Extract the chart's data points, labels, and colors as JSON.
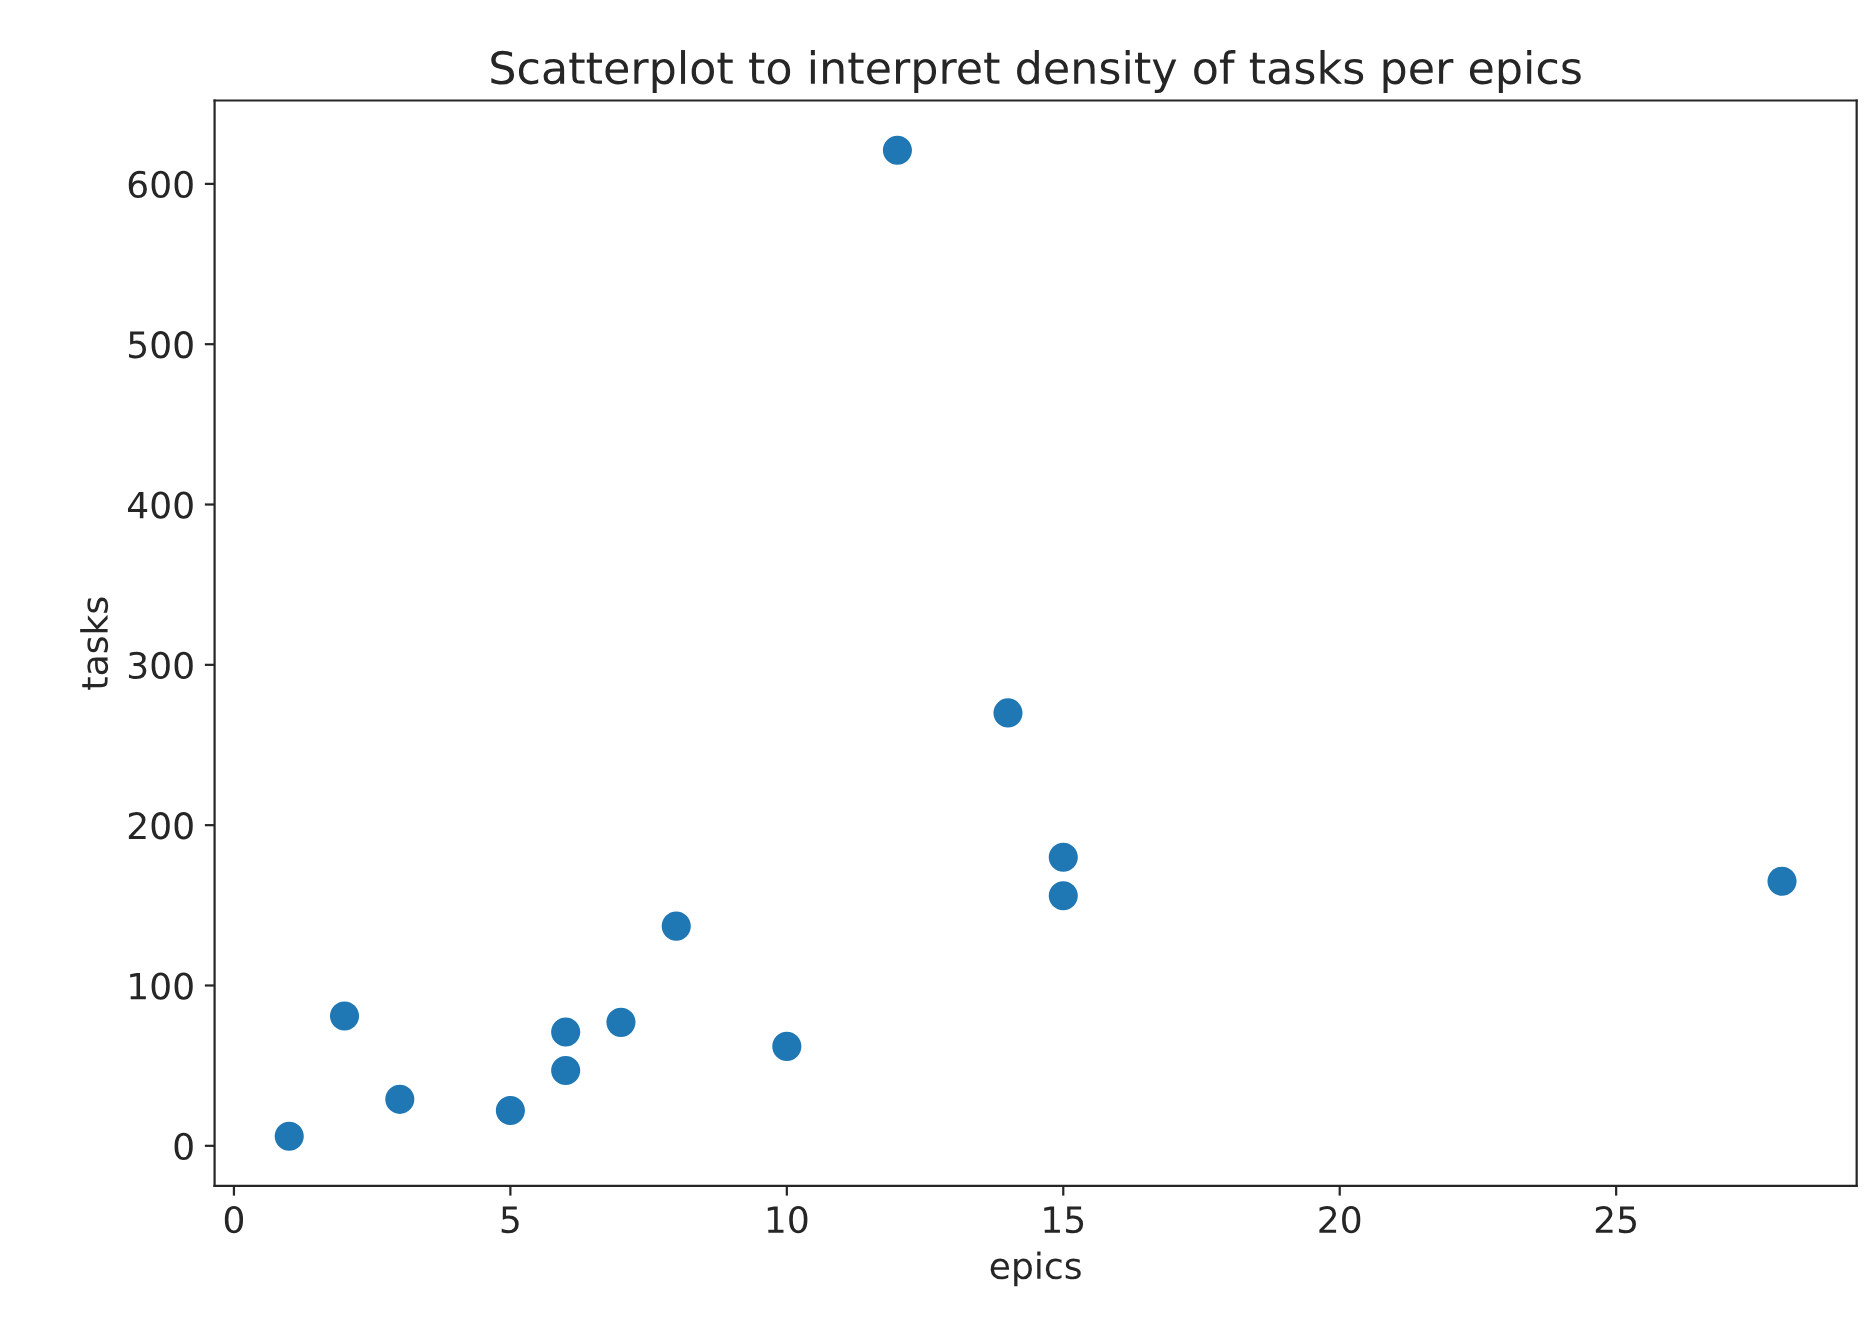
{
  "chart_data": {
    "type": "scatter",
    "title": "Scatterplot to interpret density of tasks per epics",
    "xlabel": "epics",
    "ylabel": "tasks",
    "x": [
      1,
      2,
      3,
      5,
      6,
      6,
      7,
      8,
      10,
      12,
      14,
      15,
      15,
      28
    ],
    "series": [
      {
        "color": "#1f77b4",
        "values": [
          6,
          81,
          29,
          22,
          71,
          47,
          77,
          137,
          62,
          621,
          270,
          180,
          156,
          165
        ]
      }
    ],
    "xlim": [
      -0.35,
      29.35
    ],
    "ylim": [
      -25,
      652
    ],
    "xticks": [
      0,
      5,
      10,
      15,
      20,
      25
    ],
    "yticks": [
      0,
      100,
      200,
      300,
      400,
      500,
      600
    ],
    "marker": "circle",
    "grid": false,
    "legend": false
  }
}
